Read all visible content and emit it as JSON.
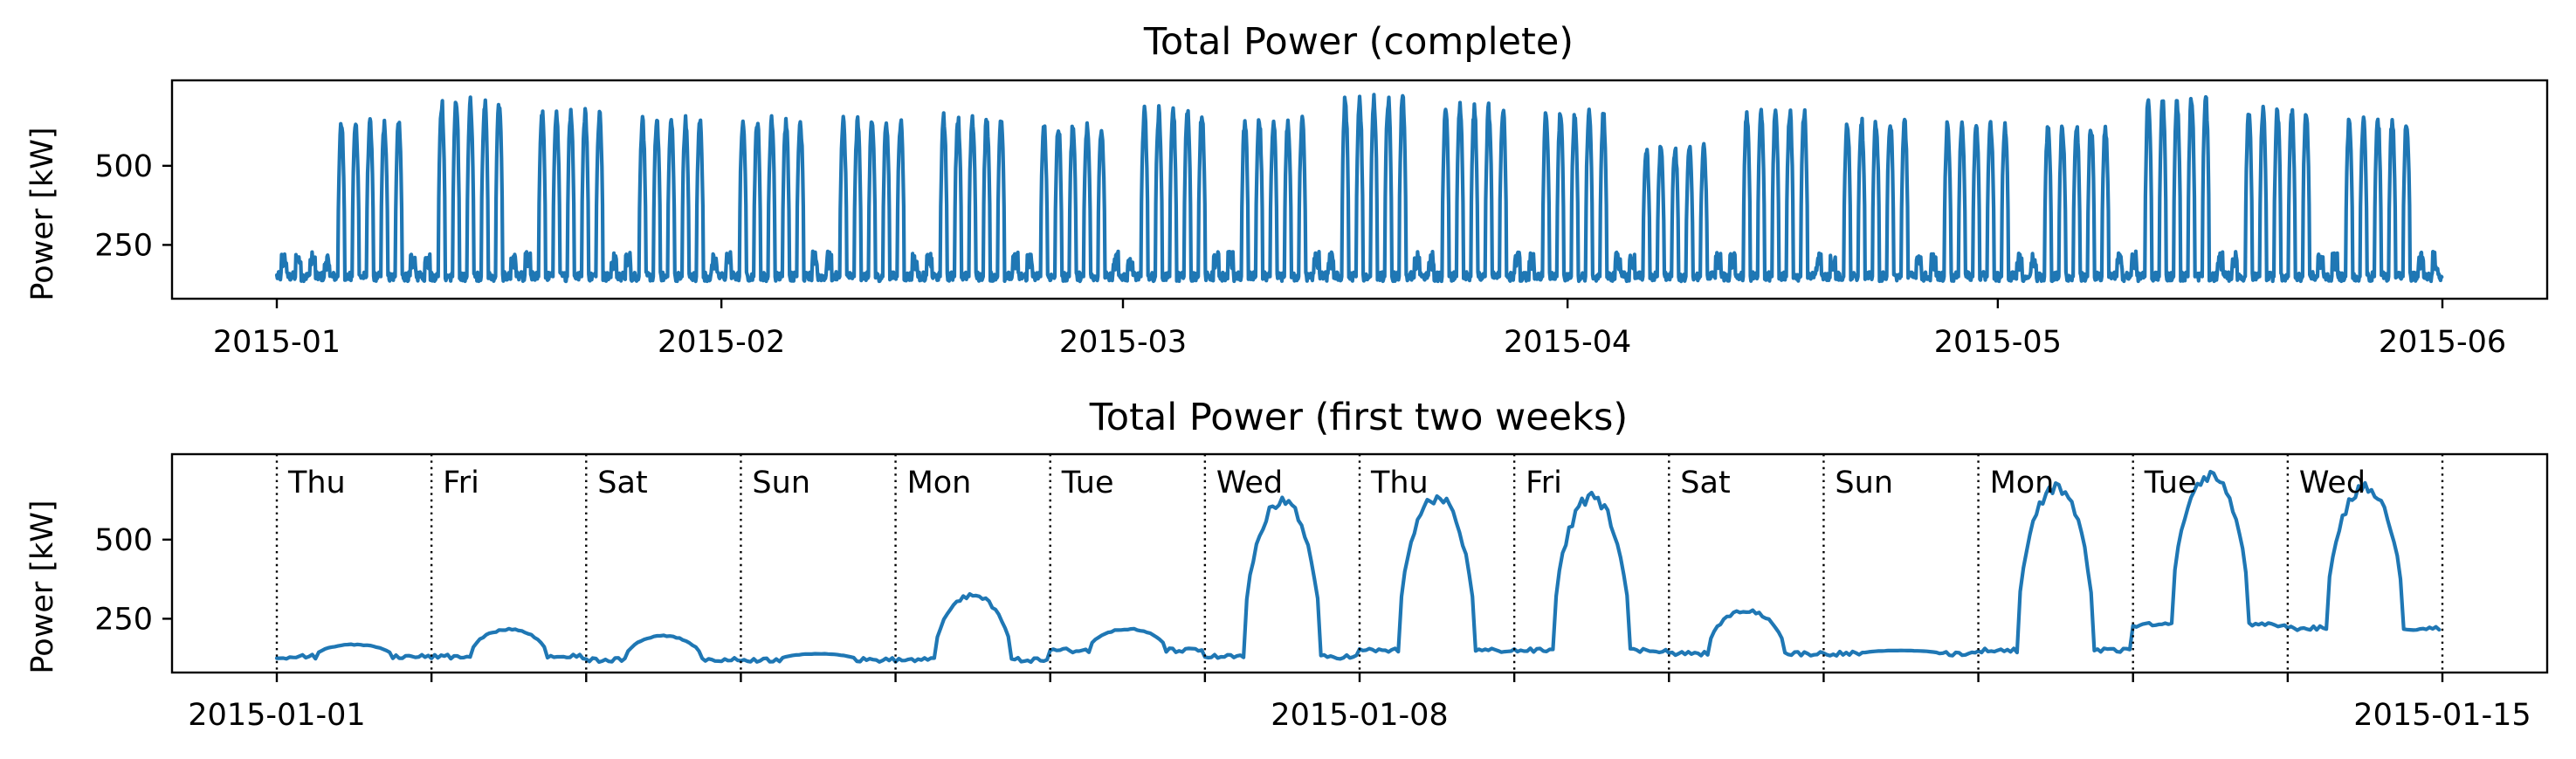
{
  "colors": {
    "series": "#1f77b4"
  },
  "chart_data": [
    {
      "type": "line",
      "title": "Total Power (complete)",
      "xlabel": "",
      "ylabel": "Power [kW]",
      "x_range": [
        "2015-01-01",
        "2015-06-01"
      ],
      "ylim": [
        80,
        770
      ],
      "yticks": [
        250,
        500
      ],
      "xticks": [
        "2015-01",
        "2015-02",
        "2015-03",
        "2015-04",
        "2015-05",
        "2015-06"
      ],
      "grid": false,
      "series": [
        {
          "description_of_pattern": "hourly total power, daily cycles",
          "x_start": "2015-01-01",
          "x_end": "2015-06-01",
          "daily_baseline_kw": 150,
          "weekday_peaks_kw_by_week": [
            160,
            650,
            720,
            690,
            660,
            660,
            660,
            670,
            640,
            690,
            660,
            730,
            700,
            680,
            570,
            690,
            660,
            650,
            640,
            730,
            690,
            660
          ],
          "weekend_level_kw": 170
        }
      ]
    },
    {
      "type": "line",
      "title": "Total Power (first two weeks)",
      "xlabel": "",
      "ylabel": "Power [kW]",
      "x_range": [
        "2015-01-01",
        "2015-01-15"
      ],
      "ylim": [
        80,
        770
      ],
      "yticks": [
        250,
        500
      ],
      "xticks": [
        "2015-01-01",
        "2015-01-08",
        "2015-01-15"
      ],
      "grid": false,
      "day_labels": [
        "Thu",
        "Fri",
        "Sat",
        "Sun",
        "Mon",
        "Tue",
        "Wed",
        "Thu",
        "Fri",
        "Sat",
        "Sun",
        "Mon",
        "Tue",
        "Wed"
      ],
      "series": [
        {
          "x": [
            "2015-01-01",
            "2015-01-02",
            "2015-01-03",
            "2015-01-04",
            "2015-01-05",
            "2015-01-06",
            "2015-01-07",
            "2015-01-08",
            "2015-01-09",
            "2015-01-10",
            "2015-01-11",
            "2015-01-12",
            "2015-01-13",
            "2015-01-14"
          ],
          "daily_peak_kw": [
            170,
            220,
            200,
            140,
            330,
            220,
            640,
            650,
            650,
            280,
            150,
            680,
            720,
            680
          ],
          "daily_base_kw": [
            130,
            130,
            120,
            120,
            120,
            150,
            130,
            150,
            150,
            140,
            140,
            150,
            230,
            220
          ]
        }
      ]
    }
  ]
}
